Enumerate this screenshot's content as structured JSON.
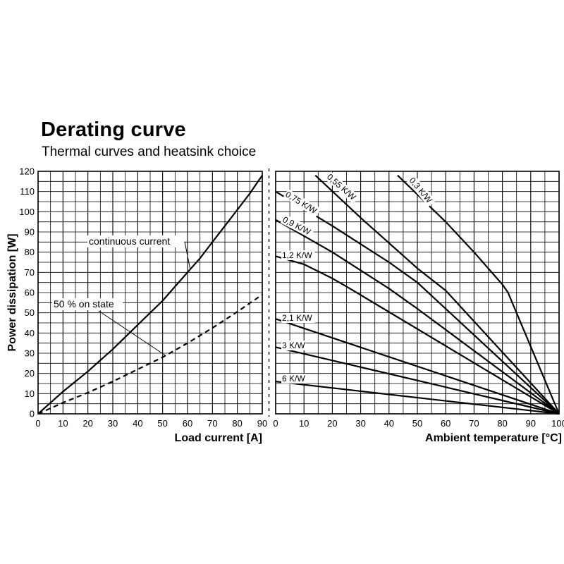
{
  "header": {
    "title": "Derating curve",
    "subtitle": "Thermal curves and heatsink choice"
  },
  "chart_data": [
    {
      "type": "line",
      "xlabel": "Load current [A]",
      "ylabel": "Power dissipation [W]",
      "xlim": [
        0,
        90
      ],
      "ylim": [
        0,
        120
      ],
      "xticks": [
        "0",
        "10",
        "20",
        "30",
        "40",
        "50",
        "60",
        "70",
        "80",
        "90"
      ],
      "yticks": [
        "0",
        "10",
        "20",
        "30",
        "40",
        "50",
        "60",
        "70",
        "80",
        "90",
        "100",
        "110",
        "120"
      ],
      "grid": true,
      "series": [
        {
          "name": "continuous current",
          "style": "solid",
          "points": [
            [
              0,
              0
            ],
            [
              5,
              5.5
            ],
            [
              10,
              11
            ],
            [
              15,
              16
            ],
            [
              20,
              21
            ],
            [
              25,
              26.5
            ],
            [
              30,
              32
            ],
            [
              35,
              38
            ],
            [
              40,
              44
            ],
            [
              45,
              50
            ],
            [
              50,
              56
            ],
            [
              55,
              63
            ],
            [
              60,
              70
            ],
            [
              65,
              77
            ],
            [
              70,
              85
            ],
            [
              75,
              93
            ],
            [
              80,
              101
            ],
            [
              85,
              109
            ],
            [
              90,
              118
            ]
          ]
        },
        {
          "name": "50 % on state",
          "style": "dashed",
          "points": [
            [
              0,
              0
            ],
            [
              10,
              5.5
            ],
            [
              20,
              10.5
            ],
            [
              30,
              16
            ],
            [
              40,
              22
            ],
            [
              50,
              28
            ],
            [
              60,
              35
            ],
            [
              70,
              42.5
            ],
            [
              80,
              50.5
            ],
            [
              90,
              59
            ]
          ]
        }
      ]
    },
    {
      "type": "line",
      "xlabel": "Ambient temperature [°C]",
      "ylabel": "",
      "xlim": [
        0,
        100
      ],
      "ylim": [
        0,
        120
      ],
      "xticks": [
        "0",
        "10",
        "20",
        "30",
        "40",
        "50",
        "60",
        "70",
        "80",
        "90",
        "100"
      ],
      "grid": true,
      "series": [
        {
          "name": "0,3 K/W",
          "style": "solid",
          "points": [
            [
              43,
              118
            ],
            [
              60,
              95
            ],
            [
              70,
              80
            ],
            [
              80,
              64
            ],
            [
              82,
              60
            ],
            [
              100,
              0
            ]
          ]
        },
        {
          "name": "0,55 K/W",
          "style": "solid",
          "points": [
            [
              14,
              118
            ],
            [
              30,
              97
            ],
            [
              50,
              72
            ],
            [
              60,
              61
            ],
            [
              100,
              0
            ]
          ]
        },
        {
          "name": "0,75 K/W",
          "style": "solid",
          "points": [
            [
              0,
              110
            ],
            [
              20,
              93
            ],
            [
              40,
              75
            ],
            [
              50,
              65
            ],
            [
              100,
              0
            ]
          ]
        },
        {
          "name": "0,9 K/W",
          "style": "solid",
          "points": [
            [
              0,
              96
            ],
            [
              20,
              80
            ],
            [
              40,
              62
            ],
            [
              50,
              52
            ],
            [
              100,
              0
            ]
          ]
        },
        {
          "name": "1,2 K/W",
          "style": "solid",
          "points": [
            [
              0,
              78
            ],
            [
              10,
              74
            ],
            [
              20,
              67
            ],
            [
              25,
              63
            ],
            [
              100,
              0
            ]
          ]
        },
        {
          "name": "2,1 K/W",
          "style": "solid",
          "points": [
            [
              0,
              47
            ],
            [
              100,
              0
            ]
          ]
        },
        {
          "name": "3 K/W",
          "style": "solid",
          "points": [
            [
              0,
              33
            ],
            [
              100,
              0
            ]
          ]
        },
        {
          "name": "6 K/W",
          "style": "solid",
          "points": [
            [
              0,
              16
            ],
            [
              100,
              0
            ]
          ]
        }
      ]
    }
  ]
}
